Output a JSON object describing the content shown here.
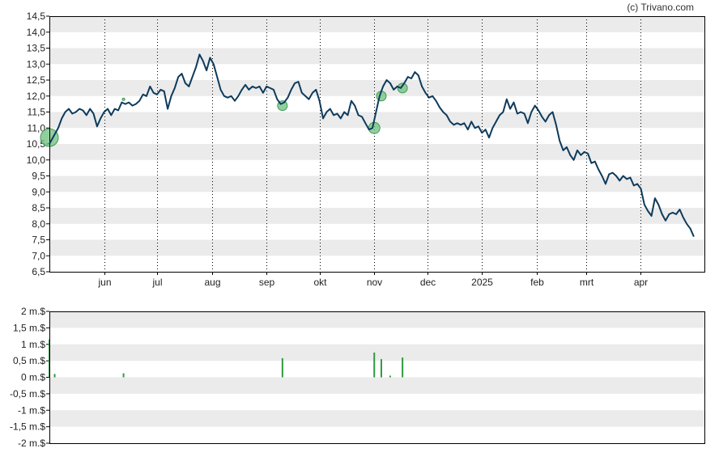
{
  "credit": "(c) Trivano.com",
  "colors": {
    "band": "#ebebeb",
    "line": "#0d3b5c",
    "marker": "#6dbf7d",
    "marker_stroke": "#3f9a55",
    "volume_bar": "#2e9a3e",
    "frame": "#000000",
    "grid": "#000000"
  },
  "chart_data": [
    {
      "type": "line",
      "ylim": [
        6.5,
        14.5
      ],
      "y_ticks": [
        "6,5",
        "7,0",
        "7,5",
        "8,0",
        "8,5",
        "9,0",
        "9,5",
        "10,0",
        "10,5",
        "11,0",
        "11,5",
        "12,0",
        "12,5",
        "13,0",
        "13,5",
        "14,0",
        "14,5"
      ],
      "x_domain": [
        "2024-05-01",
        "2025-05-07"
      ],
      "x_ticks": [
        {
          "date": "2024-06-01",
          "label": "jun"
        },
        {
          "date": "2024-07-01",
          "label": "jul"
        },
        {
          "date": "2024-08-01",
          "label": "aug"
        },
        {
          "date": "2024-09-01",
          "label": "sep"
        },
        {
          "date": "2024-10-01",
          "label": "okt"
        },
        {
          "date": "2024-11-01",
          "label": "nov"
        },
        {
          "date": "2024-12-01",
          "label": "dec"
        },
        {
          "date": "2025-01-01",
          "label": "2025"
        },
        {
          "date": "2025-02-01",
          "label": "feb"
        },
        {
          "date": "2025-03-01",
          "label": "mrt"
        },
        {
          "date": "2025-04-01",
          "label": "apr"
        }
      ],
      "grid": "vertical dotted at month ticks",
      "series": [
        {
          "points": [
            [
              "2024-05-01",
              10.5
            ],
            [
              "2024-05-04",
              10.8
            ],
            [
              "2024-05-06",
              11.0
            ],
            [
              "2024-05-08",
              11.3
            ],
            [
              "2024-05-10",
              11.5
            ],
            [
              "2024-05-12",
              11.6
            ],
            [
              "2024-05-14",
              11.45
            ],
            [
              "2024-05-16",
              11.5
            ],
            [
              "2024-05-18",
              11.6
            ],
            [
              "2024-05-20",
              11.55
            ],
            [
              "2024-05-22",
              11.4
            ],
            [
              "2024-05-24",
              11.6
            ],
            [
              "2024-05-26",
              11.45
            ],
            [
              "2024-05-28",
              11.05
            ],
            [
              "2024-05-30",
              11.3
            ],
            [
              "2024-06-01",
              11.5
            ],
            [
              "2024-06-03",
              11.6
            ],
            [
              "2024-06-05",
              11.4
            ],
            [
              "2024-06-07",
              11.6
            ],
            [
              "2024-06-09",
              11.55
            ],
            [
              "2024-06-11",
              11.8
            ],
            [
              "2024-06-13",
              11.75
            ],
            [
              "2024-06-15",
              11.8
            ],
            [
              "2024-06-17",
              11.7
            ],
            [
              "2024-06-19",
              11.75
            ],
            [
              "2024-06-21",
              11.85
            ],
            [
              "2024-06-23",
              12.05
            ],
            [
              "2024-06-25",
              12.0
            ],
            [
              "2024-06-27",
              12.3
            ],
            [
              "2024-06-29",
              12.1
            ],
            [
              "2024-07-01",
              12.05
            ],
            [
              "2024-07-03",
              12.2
            ],
            [
              "2024-07-05",
              12.15
            ],
            [
              "2024-07-07",
              11.6
            ],
            [
              "2024-07-09",
              12.0
            ],
            [
              "2024-07-11",
              12.25
            ],
            [
              "2024-07-13",
              12.6
            ],
            [
              "2024-07-15",
              12.7
            ],
            [
              "2024-07-17",
              12.4
            ],
            [
              "2024-07-19",
              12.3
            ],
            [
              "2024-07-21",
              12.6
            ],
            [
              "2024-07-23",
              12.9
            ],
            [
              "2024-07-25",
              13.3
            ],
            [
              "2024-07-27",
              13.1
            ],
            [
              "2024-07-29",
              12.8
            ],
            [
              "2024-07-31",
              13.2
            ],
            [
              "2024-08-02",
              13.0
            ],
            [
              "2024-08-04",
              12.6
            ],
            [
              "2024-08-06",
              12.2
            ],
            [
              "2024-08-08",
              12.0
            ],
            [
              "2024-08-10",
              11.95
            ],
            [
              "2024-08-12",
              12.0
            ],
            [
              "2024-08-14",
              11.85
            ],
            [
              "2024-08-16",
              12.0
            ],
            [
              "2024-08-18",
              12.2
            ],
            [
              "2024-08-20",
              12.35
            ],
            [
              "2024-08-22",
              12.2
            ],
            [
              "2024-08-24",
              12.3
            ],
            [
              "2024-08-26",
              12.25
            ],
            [
              "2024-08-28",
              12.3
            ],
            [
              "2024-08-30",
              12.1
            ],
            [
              "2024-09-01",
              12.3
            ],
            [
              "2024-09-03",
              12.25
            ],
            [
              "2024-09-05",
              12.2
            ],
            [
              "2024-09-07",
              11.9
            ],
            [
              "2024-09-09",
              11.75
            ],
            [
              "2024-09-11",
              11.8
            ],
            [
              "2024-09-13",
              11.95
            ],
            [
              "2024-09-15",
              12.2
            ],
            [
              "2024-09-17",
              12.4
            ],
            [
              "2024-09-19",
              12.45
            ],
            [
              "2024-09-21",
              12.1
            ],
            [
              "2024-09-23",
              12.0
            ],
            [
              "2024-09-25",
              11.9
            ],
            [
              "2024-09-27",
              12.1
            ],
            [
              "2024-09-29",
              12.2
            ],
            [
              "2024-10-01",
              11.85
            ],
            [
              "2024-10-03",
              11.3
            ],
            [
              "2024-10-05",
              11.5
            ],
            [
              "2024-10-07",
              11.6
            ],
            [
              "2024-10-09",
              11.4
            ],
            [
              "2024-10-11",
              11.45
            ],
            [
              "2024-10-13",
              11.3
            ],
            [
              "2024-10-15",
              11.5
            ],
            [
              "2024-10-17",
              11.4
            ],
            [
              "2024-10-19",
              11.85
            ],
            [
              "2024-10-21",
              11.7
            ],
            [
              "2024-10-23",
              11.4
            ],
            [
              "2024-10-25",
              11.35
            ],
            [
              "2024-10-27",
              11.15
            ],
            [
              "2024-10-29",
              10.95
            ],
            [
              "2024-10-31",
              11.0
            ],
            [
              "2024-11-02",
              11.5
            ],
            [
              "2024-11-04",
              12.0
            ],
            [
              "2024-11-06",
              12.3
            ],
            [
              "2024-11-08",
              12.5
            ],
            [
              "2024-11-10",
              12.4
            ],
            [
              "2024-11-12",
              12.2
            ],
            [
              "2024-11-14",
              12.3
            ],
            [
              "2024-11-16",
              12.25
            ],
            [
              "2024-11-18",
              12.4
            ],
            [
              "2024-11-20",
              12.6
            ],
            [
              "2024-11-22",
              12.55
            ],
            [
              "2024-11-24",
              12.75
            ],
            [
              "2024-11-26",
              12.65
            ],
            [
              "2024-11-28",
              12.3
            ],
            [
              "2024-11-30",
              12.1
            ],
            [
              "2024-12-02",
              11.95
            ],
            [
              "2024-12-04",
              12.0
            ],
            [
              "2024-12-06",
              11.85
            ],
            [
              "2024-12-08",
              11.65
            ],
            [
              "2024-12-10",
              11.5
            ],
            [
              "2024-12-12",
              11.4
            ],
            [
              "2024-12-14",
              11.2
            ],
            [
              "2024-12-16",
              11.1
            ],
            [
              "2024-12-18",
              11.15
            ],
            [
              "2024-12-20",
              11.1
            ],
            [
              "2024-12-22",
              11.15
            ],
            [
              "2024-12-24",
              10.95
            ],
            [
              "2024-12-26",
              11.2
            ],
            [
              "2024-12-28",
              11.0
            ],
            [
              "2024-12-30",
              11.05
            ],
            [
              "2025-01-01",
              10.85
            ],
            [
              "2025-01-03",
              10.95
            ],
            [
              "2025-01-05",
              10.7
            ],
            [
              "2025-01-07",
              11.0
            ],
            [
              "2025-01-09",
              11.2
            ],
            [
              "2025-01-11",
              11.4
            ],
            [
              "2025-01-13",
              11.5
            ],
            [
              "2025-01-15",
              11.9
            ],
            [
              "2025-01-17",
              11.6
            ],
            [
              "2025-01-19",
              11.8
            ],
            [
              "2025-01-21",
              11.45
            ],
            [
              "2025-01-23",
              11.5
            ],
            [
              "2025-01-25",
              11.45
            ],
            [
              "2025-01-27",
              11.15
            ],
            [
              "2025-01-29",
              11.5
            ],
            [
              "2025-01-31",
              11.7
            ],
            [
              "2025-02-02",
              11.55
            ],
            [
              "2025-02-04",
              11.35
            ],
            [
              "2025-02-06",
              11.2
            ],
            [
              "2025-02-08",
              11.4
            ],
            [
              "2025-02-10",
              11.5
            ],
            [
              "2025-02-12",
              11.1
            ],
            [
              "2025-02-14",
              10.6
            ],
            [
              "2025-02-16",
              10.3
            ],
            [
              "2025-02-18",
              10.4
            ],
            [
              "2025-02-20",
              10.15
            ],
            [
              "2025-02-22",
              10.0
            ],
            [
              "2025-02-24",
              10.3
            ],
            [
              "2025-02-26",
              10.15
            ],
            [
              "2025-02-28",
              10.25
            ],
            [
              "2025-03-02",
              10.2
            ],
            [
              "2025-03-04",
              9.9
            ],
            [
              "2025-03-06",
              9.95
            ],
            [
              "2025-03-08",
              9.7
            ],
            [
              "2025-03-10",
              9.5
            ],
            [
              "2025-03-12",
              9.25
            ],
            [
              "2025-03-14",
              9.55
            ],
            [
              "2025-03-16",
              9.6
            ],
            [
              "2025-03-18",
              9.5
            ],
            [
              "2025-03-20",
              9.35
            ],
            [
              "2025-03-22",
              9.5
            ],
            [
              "2025-03-24",
              9.4
            ],
            [
              "2025-03-26",
              9.45
            ],
            [
              "2025-03-28",
              9.2
            ],
            [
              "2025-03-30",
              9.25
            ],
            [
              "2025-04-01",
              9.1
            ],
            [
              "2025-04-03",
              8.6
            ],
            [
              "2025-04-05",
              8.4
            ],
            [
              "2025-04-07",
              8.25
            ],
            [
              "2025-04-09",
              8.8
            ],
            [
              "2025-04-11",
              8.6
            ],
            [
              "2025-04-13",
              8.3
            ],
            [
              "2025-04-15",
              8.1
            ],
            [
              "2025-04-17",
              8.3
            ],
            [
              "2025-04-19",
              8.35
            ],
            [
              "2025-04-21",
              8.3
            ],
            [
              "2025-04-23",
              8.45
            ],
            [
              "2025-04-25",
              8.2
            ],
            [
              "2025-04-27",
              8.0
            ],
            [
              "2025-04-29",
              7.85
            ],
            [
              "2025-05-01",
              7.6
            ]
          ]
        }
      ],
      "markers": [
        {
          "date": "2024-05-01",
          "value": 10.7,
          "size": "large"
        },
        {
          "date": "2024-06-12",
          "value": 11.9,
          "size": "tiny"
        },
        {
          "date": "2024-09-10",
          "value": 11.7,
          "size": "small"
        },
        {
          "date": "2024-11-01",
          "value": 11.0,
          "size": "medium"
        },
        {
          "date": "2024-11-05",
          "value": 12.0,
          "size": "small"
        },
        {
          "date": "2024-11-17",
          "value": 12.25,
          "size": "small"
        }
      ]
    },
    {
      "type": "bar",
      "ylim": [
        -2,
        2
      ],
      "y_ticks": [
        "-2 m.$",
        "-1,5 m.$",
        "-1 m.$",
        "-0,5 m.$",
        "0 m.$",
        "0,5 m.$",
        "1 m.$",
        "1,5 m.$",
        "2 m.$"
      ],
      "x_domain": [
        "2024-05-01",
        "2025-05-07"
      ],
      "values": [
        {
          "date": "2024-05-01",
          "value": 1.15
        },
        {
          "date": "2024-05-04",
          "value": 0.1
        },
        {
          "date": "2024-06-12",
          "value": 0.12
        },
        {
          "date": "2024-09-10",
          "value": 0.58
        },
        {
          "date": "2024-11-01",
          "value": 0.75
        },
        {
          "date": "2024-11-05",
          "value": 0.55
        },
        {
          "date": "2024-11-10",
          "value": 0.05
        },
        {
          "date": "2024-11-17",
          "value": 0.6
        }
      ]
    }
  ]
}
